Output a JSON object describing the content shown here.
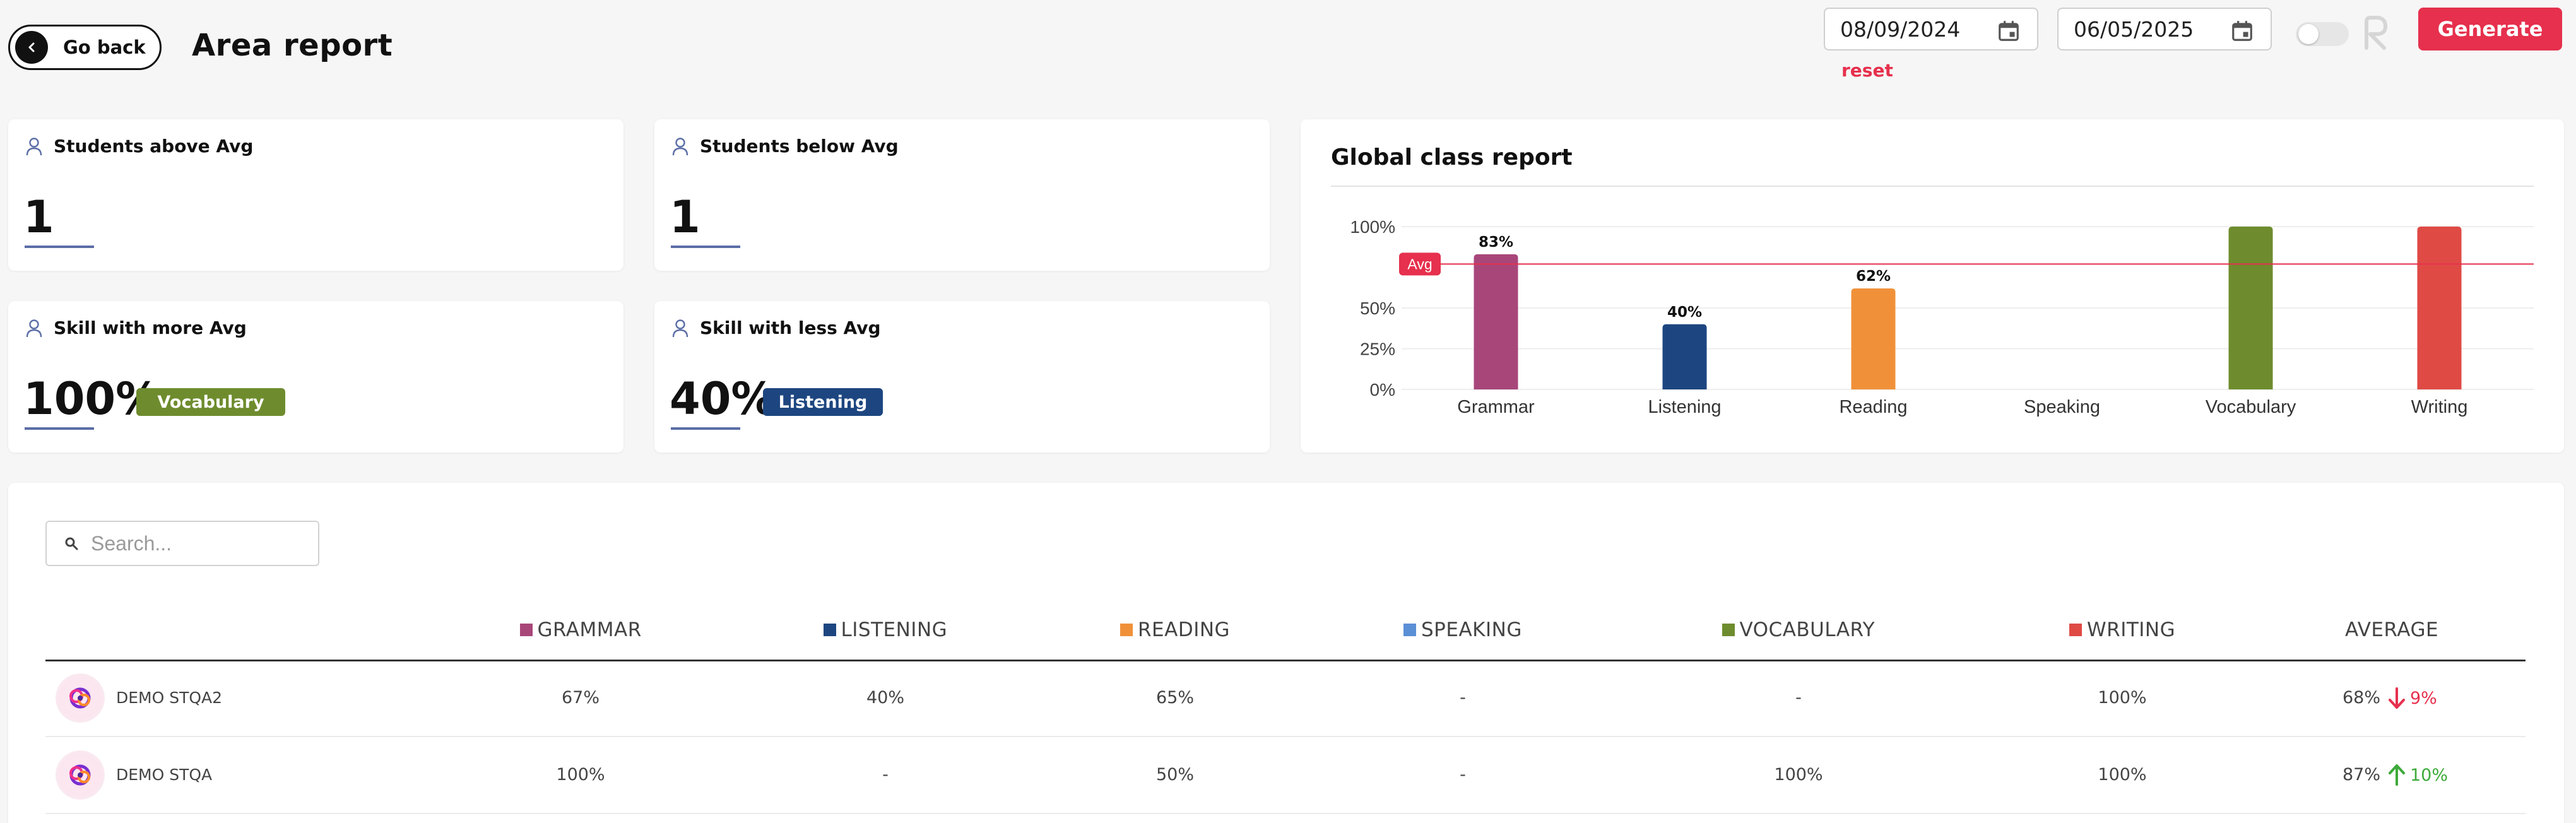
{
  "header": {
    "go_back_label": "Go back",
    "title": "Area report",
    "date_from": "08/09/2024",
    "date_to": "06/05/2025",
    "reset_label": "reset",
    "generate_label": "Generate"
  },
  "stats": {
    "above": {
      "label": "Students above Avg",
      "value": "1"
    },
    "below": {
      "label": "Students below Avg",
      "value": "1"
    },
    "more": {
      "label": "Skill with more Avg",
      "value": "100%",
      "badge": "Vocabulary"
    },
    "less": {
      "label": "Skill with less Avg",
      "value": "40%",
      "badge": "Listening"
    }
  },
  "chart_data": {
    "type": "bar",
    "title": "Global class report",
    "categories": [
      "Grammar",
      "Listening",
      "Reading",
      "Speaking",
      "Vocabulary",
      "Writing"
    ],
    "values": [
      83,
      40,
      62,
      null,
      100,
      100
    ],
    "data_labels": [
      "83%",
      "40%",
      "62%",
      "",
      "",
      ""
    ],
    "colors": [
      "#a8467a",
      "#1d4680",
      "#f0913a",
      "#5b8fd6",
      "#6e8c2e",
      "#df4a45"
    ],
    "yticks": [
      "0%",
      "25%",
      "50%",
      "100%"
    ],
    "ytick_values": [
      0,
      25,
      50,
      100
    ],
    "ylim": [
      0,
      100
    ],
    "average_line": {
      "label": "Avg",
      "value": 77
    },
    "grid": true
  },
  "table": {
    "search_placeholder": "Search...",
    "columns": [
      {
        "label": "GRAMMAR",
        "color": "#a8467a"
      },
      {
        "label": "LISTENING",
        "color": "#1d4680"
      },
      {
        "label": "READING",
        "color": "#f0913a"
      },
      {
        "label": "SPEAKING",
        "color": "#5b8fd6"
      },
      {
        "label": "VOCABULARY",
        "color": "#6e8c2e"
      },
      {
        "label": "WRITING",
        "color": "#df4a45"
      },
      {
        "label": "AVERAGE",
        "color": ""
      }
    ],
    "rows": [
      {
        "name": "DEMO STQA2",
        "cells": [
          "67%",
          "40%",
          "65%",
          "-",
          "-",
          "100%"
        ],
        "average": "68%",
        "trend": "down",
        "trend_value": "9%"
      },
      {
        "name": "DEMO STQA",
        "cells": [
          "100%",
          "-",
          "50%",
          "-",
          "100%",
          "100%"
        ],
        "average": "87%",
        "trend": "up",
        "trend_value": "10%"
      }
    ]
  },
  "theme": {
    "accent": "#e6304d",
    "trend_down": "#e6304d",
    "trend_up": "#3daa3a"
  }
}
